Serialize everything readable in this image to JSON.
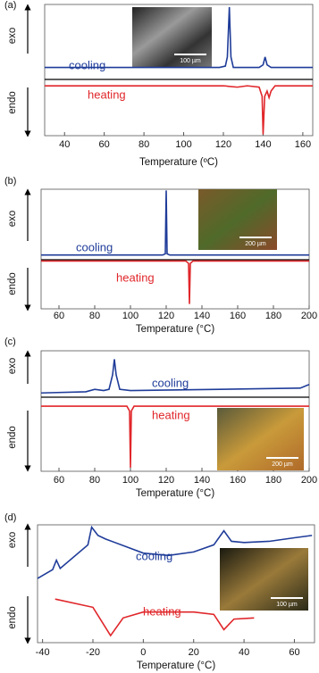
{
  "chart_data": [
    {
      "type": "line",
      "panel_label": "(a)",
      "exo_label": "exo",
      "endo_label": "endo",
      "x_label": "Temperature (ºC)",
      "inset_scale": "100 µm",
      "xlim": [
        30,
        165
      ],
      "xticks": [
        40,
        60,
        80,
        100,
        120,
        140,
        160
      ],
      "ylim": [
        0,
        100
      ],
      "series": [
        {
          "name": "cooling",
          "color": "#1f3c99",
          "x": [
            30,
            118,
            121,
            122,
            123,
            123.8,
            125,
            138,
            140,
            141,
            142,
            144,
            165
          ],
          "values": [
            52,
            52,
            53,
            60,
            98,
            60,
            52,
            52,
            54,
            60,
            54,
            52,
            52
          ]
        },
        {
          "name": "heating",
          "color": "#e0262a",
          "x": [
            30,
            120,
            127,
            132,
            138,
            139.5,
            140,
            140.8,
            142,
            143,
            144,
            146,
            165
          ],
          "values": [
            38,
            38,
            37,
            38,
            37,
            30,
            1,
            30,
            34,
            29,
            34,
            38,
            38
          ]
        }
      ]
    },
    {
      "type": "line",
      "panel_label": "(b)",
      "exo_label": "exo",
      "endo_label": "endo",
      "x_label": "Temperature (°C)",
      "inset_scale": "200 µm",
      "xlim": [
        50,
        200
      ],
      "xticks": [
        60,
        80,
        100,
        120,
        140,
        160,
        180,
        200
      ],
      "ylim": [
        0,
        100
      ],
      "series": [
        {
          "name": "cooling",
          "color": "#1f3c99",
          "x": [
            50,
            118,
            119.5,
            120,
            120.5,
            122,
            200
          ],
          "values": [
            45,
            45,
            46,
            99,
            46,
            45,
            45
          ]
        },
        {
          "name": "heating",
          "color": "#e0262a",
          "x": [
            50,
            131,
            132.5,
            133,
            133.5,
            135,
            200
          ],
          "values": [
            40,
            40,
            38,
            4,
            38,
            40,
            40
          ]
        }
      ]
    },
    {
      "type": "line",
      "panel_label": "(c)",
      "exo_label": "exo",
      "endo_label": "endo",
      "x_label": "Temperature (°C)",
      "inset_scale": "200 µm",
      "xlim": [
        50,
        200
      ],
      "xticks": [
        60,
        80,
        100,
        120,
        140,
        160,
        180,
        200
      ],
      "ylim": [
        0,
        100
      ],
      "series": [
        {
          "name": "cooling",
          "color": "#1f3c99",
          "x": [
            50,
            75,
            80,
            85,
            88,
            90,
            91,
            92,
            94,
            100,
            150,
            195,
            200
          ],
          "values": [
            65,
            66,
            68,
            67,
            68,
            80,
            93,
            80,
            68,
            67,
            68,
            69,
            72
          ]
        },
        {
          "name": "heating",
          "color": "#e0262a",
          "x": [
            50,
            98,
            99.5,
            100,
            100.5,
            102,
            200
          ],
          "values": [
            54,
            54,
            50,
            3,
            50,
            54,
            54
          ]
        }
      ]
    },
    {
      "type": "line",
      "panel_label": "(d)",
      "exo_label": "exo",
      "endo_label": "endo",
      "x_label": "Temperature (°C)",
      "inset_scale": "100 µm",
      "xlim": [
        -42,
        68
      ],
      "xticks": [
        -40,
        -20,
        0,
        20,
        40,
        60
      ],
      "ylim": [
        0,
        100
      ],
      "series": [
        {
          "name": "cooling",
          "color": "#1f3c99",
          "x": [
            -42,
            -36,
            -34.5,
            -33,
            -22,
            -20.5,
            -18,
            -15,
            0,
            10,
            20,
            28,
            32,
            35,
            40,
            50,
            60,
            67
          ],
          "values": [
            54.5,
            62,
            70,
            63,
            83,
            98,
            91,
            88,
            76,
            74,
            77,
            83,
            95,
            86,
            85,
            86,
            89,
            91
          ]
        },
        {
          "name": "heating",
          "color": "#e0262a",
          "x": [
            -35,
            -20,
            -13,
            -8,
            0,
            20,
            28,
            32,
            36,
            44
          ],
          "values": [
            37,
            30,
            6,
            21,
            26,
            26,
            24,
            11,
            20,
            21
          ]
        }
      ]
    }
  ]
}
